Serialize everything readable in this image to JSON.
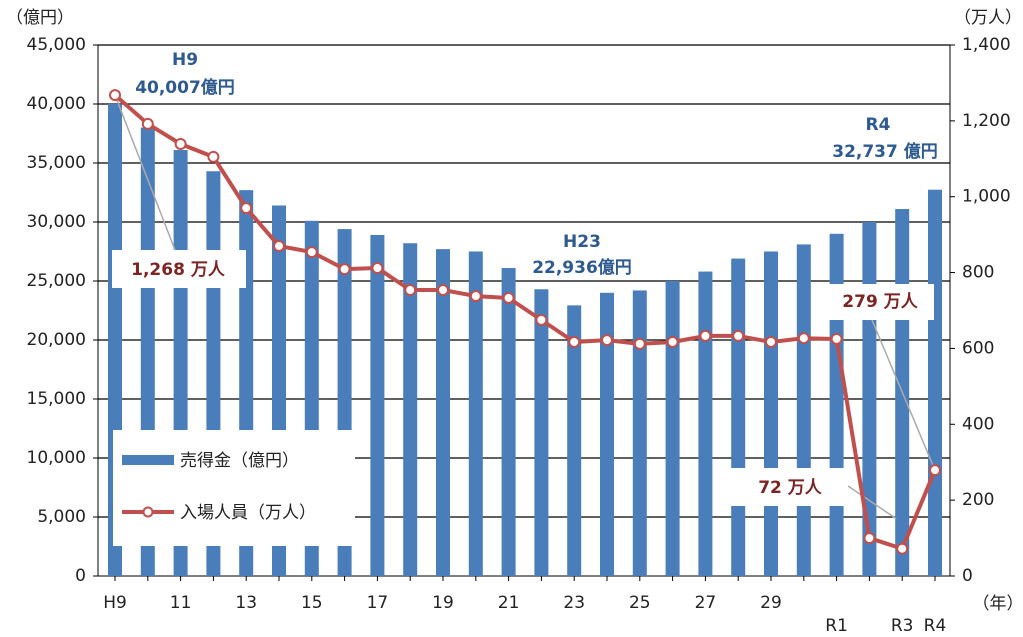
{
  "chart_data": {
    "type": "bar_line",
    "y_label": "（億円）",
    "y2_label": "（万人）",
    "x_label": "（年）",
    "categories": [
      "H9",
      null,
      "11",
      null,
      "13",
      null,
      "15",
      null,
      "17",
      null,
      "19",
      null,
      "21",
      null,
      "23",
      null,
      "25",
      null,
      "27",
      null,
      "29",
      null,
      "R1",
      null,
      "R3",
      "R4"
    ],
    "series": [
      {
        "name": "売得金（億円）",
        "color": "#4a7ebb",
        "type": "bar",
        "values": [
          40007,
          38000,
          36100,
          34300,
          32700,
          31400,
          30100,
          29400,
          28900,
          28200,
          27700,
          27500,
          26100,
          24300,
          22936,
          24000,
          24200,
          25000,
          25800,
          26900,
          27500,
          28100,
          29000,
          30000,
          31100,
          32737
        ]
      },
      {
        "name": "入場人員（万人）",
        "color": "#c0504d",
        "type": "line",
        "axis": "y2",
        "values": [
          1268,
          1192,
          1139,
          1105,
          970,
          870,
          854,
          809,
          812,
          754,
          754,
          738,
          733,
          675,
          617,
          622,
          612,
          617,
          633,
          633,
          617,
          627,
          625,
          100,
          72,
          279
        ]
      }
    ],
    "ylim": [
      0,
      45000
    ],
    "yticks": [
      0,
      {
        "value": 5000,
        "label": "5,000"
      },
      {
        "value": 10000,
        "label": "10,000"
      },
      {
        "value": 15000,
        "label": "15,000"
      },
      {
        "value": 20000,
        "label": "20,000"
      },
      {
        "value": 25000,
        "label": "25,000"
      },
      {
        "value": 30000,
        "label": "30,000"
      },
      {
        "value": 35000,
        "label": "35,000"
      },
      {
        "value": 40000,
        "label": "40,000"
      },
      {
        "value": 45000,
        "label": "45,000"
      }
    ],
    "y2lim": [
      0,
      1400
    ],
    "y2ticks": [
      0,
      200,
      400,
      600,
      800,
      {
        "value": 1000,
        "label": "1,000"
      },
      {
        "value": 1200,
        "label": "1,200"
      },
      {
        "value": 1400,
        "label": "1,400"
      }
    ],
    "grid": true,
    "annotations": [
      "H9",
      "40,007億円",
      "R4",
      "32,737 億円",
      "H23",
      "22,936億円",
      "1,268 万人",
      "279 万人",
      "72 万人"
    ]
  }
}
